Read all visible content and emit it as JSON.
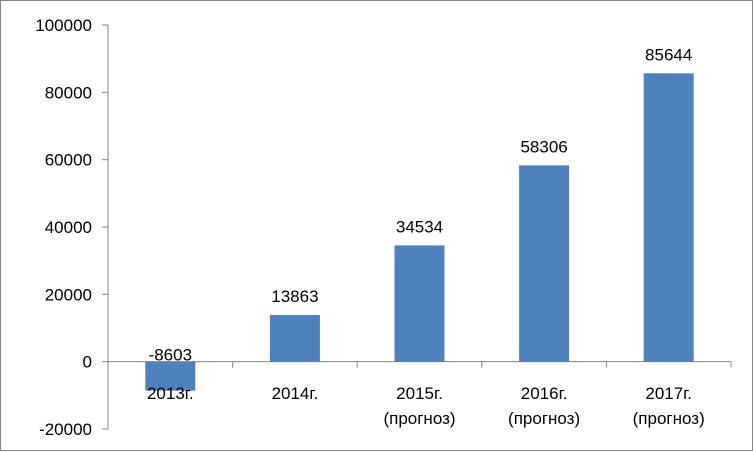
{
  "chart_data": {
    "type": "bar",
    "categories": [
      [
        "2013г."
      ],
      [
        "2014г."
      ],
      [
        "2015г.",
        "(прогноз)"
      ],
      [
        "2016г.",
        "(прогноз)"
      ],
      [
        "2017г.",
        "(прогноз)"
      ]
    ],
    "values": [
      -8603,
      13863,
      34534,
      58306,
      85644
    ],
    "data_labels": [
      "-8603",
      "13863",
      "34534",
      "58306",
      "85644"
    ],
    "y_ticks": [
      "100000",
      "80000",
      "60000",
      "40000",
      "20000",
      "0",
      "-20000"
    ],
    "ylim": [
      -20000,
      100000
    ],
    "bar_color": "#4F81BD",
    "grid": false,
    "legend": "none"
  }
}
